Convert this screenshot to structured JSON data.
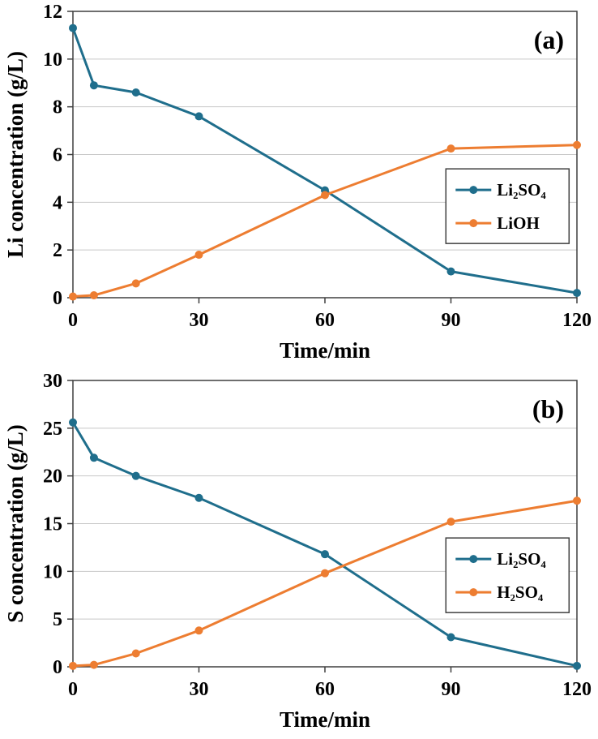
{
  "figure": {
    "background": "#ffffff",
    "grid_color": "#c8c8c8",
    "frame_color": "#3f3f3f",
    "text_color": "#000000"
  },
  "chart_data": [
    {
      "type": "line",
      "panel_label": "(a)",
      "ylabel": "Li concentration (g/L)",
      "xlabel": "Time/min",
      "ymin": 0,
      "ymax": 12,
      "ystep": 2,
      "xmin": 0,
      "xmax": 120,
      "xticks": [
        0,
        30,
        60,
        90,
        120
      ],
      "grid": "horizontal",
      "legend_position": "middle-right",
      "x": [
        0,
        5,
        15,
        30,
        60,
        90,
        120
      ],
      "series": [
        {
          "name": "Li₂SO₄",
          "color": "#1f6e8c",
          "values": [
            11.3,
            8.9,
            8.6,
            7.6,
            4.5,
            1.1,
            0.2
          ]
        },
        {
          "name": "LiOH",
          "color": "#ed7d31",
          "values": [
            0.05,
            0.1,
            0.6,
            1.8,
            4.3,
            6.25,
            6.4
          ]
        }
      ]
    },
    {
      "type": "line",
      "panel_label": "(b)",
      "ylabel": "S concentration (g/L)",
      "xlabel": "Time/min",
      "ymin": 0,
      "ymax": 30,
      "ystep": 5,
      "xmin": 0,
      "xmax": 120,
      "xticks": [
        0,
        30,
        60,
        90,
        120
      ],
      "grid": "horizontal",
      "legend_position": "middle-right",
      "x": [
        0,
        5,
        15,
        30,
        60,
        90,
        120
      ],
      "series": [
        {
          "name": "Li₂SO₄",
          "color": "#1f6e8c",
          "values": [
            25.6,
            21.9,
            20.0,
            17.7,
            11.8,
            3.1,
            0.1
          ]
        },
        {
          "name": "H₂SO₄",
          "color": "#ed7d31",
          "values": [
            0.1,
            0.2,
            1.4,
            3.8,
            9.8,
            15.2,
            17.4
          ]
        }
      ]
    }
  ]
}
